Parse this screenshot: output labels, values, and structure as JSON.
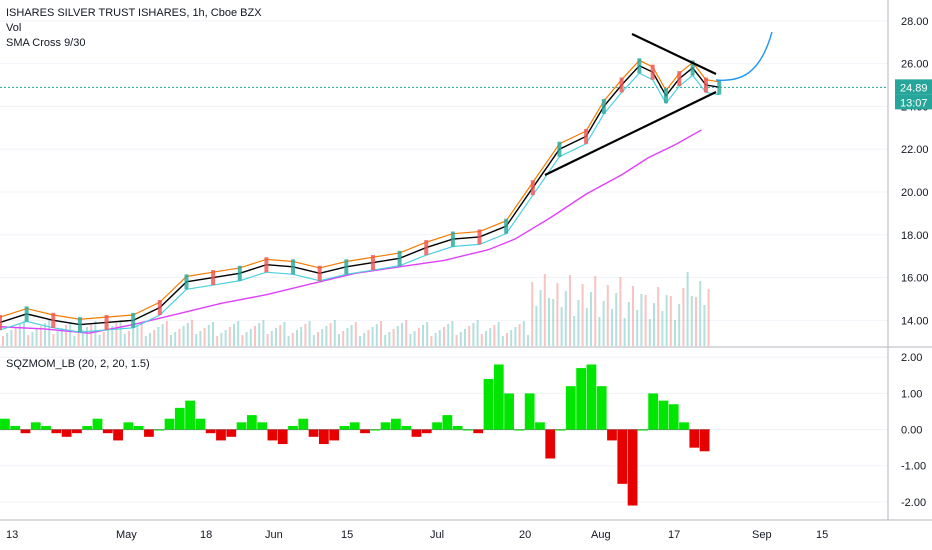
{
  "header": {
    "title": "ISHARES SILVER TRUST ISHARES, 1h, Cboe BZX",
    "vol_label": "Vol",
    "sma_label": "SMA Cross 9/30"
  },
  "sub_header": {
    "label": "SQZMOM_LB (20, 2, 20, 1.5)"
  },
  "badges": {
    "price": "24.89",
    "countdown": "13:07"
  },
  "colors": {
    "price_badge": "#26a69a",
    "countdown_badge": "#26a69a",
    "up": "#26a69a",
    "down": "#ef5350",
    "sma_fast": "#f57c00",
    "sma_slow": "#000000",
    "sma_200": "#e040fb",
    "sma_cyan": "#4dd0e1",
    "projection": "#2196f3",
    "mom_up": "#00e600",
    "mom_down": "#e60000",
    "grid": "#f0f3fa"
  },
  "chart_data": [
    {
      "type": "line",
      "title": "ISHARES SILVER TRUST ISHARES, 1h, Cboe BZX",
      "x_ticks": [
        "13",
        "May",
        "18",
        "Jun",
        "15",
        "Jul",
        "20",
        "Aug",
        "17",
        "Sep",
        "15"
      ],
      "y_ticks": [
        14.0,
        16.0,
        18.0,
        20.0,
        22.0,
        24.0,
        26.0,
        28.0
      ],
      "ylim": [
        12.8,
        28.6
      ],
      "last_price": 24.89,
      "series": [
        {
          "name": "SMA Cross 9/30",
          "x": [
            0.0,
            0.03,
            0.06,
            0.09,
            0.12,
            0.15,
            0.18,
            0.21,
            0.24,
            0.27,
            0.3,
            0.33,
            0.36,
            0.39,
            0.42,
            0.45,
            0.48,
            0.51,
            0.54,
            0.57,
            0.6,
            0.63,
            0.66,
            0.68,
            0.7,
            0.72,
            0.735,
            0.75,
            0.765,
            0.78,
            0.795,
            0.81
          ],
          "values": [
            13.9,
            14.3,
            14.0,
            13.8,
            13.9,
            14.0,
            14.6,
            15.8,
            16.0,
            16.2,
            16.6,
            16.5,
            16.2,
            16.5,
            16.7,
            16.9,
            17.4,
            17.8,
            17.9,
            18.4,
            20.2,
            22.0,
            22.6,
            24.0,
            25.0,
            25.9,
            25.6,
            24.5,
            25.3,
            25.8,
            25.0,
            24.9
          ]
        },
        {
          "name": "SMA 200",
          "x": [
            0.0,
            0.05,
            0.1,
            0.15,
            0.2,
            0.25,
            0.3,
            0.35,
            0.4,
            0.45,
            0.5,
            0.55,
            0.58,
            0.62,
            0.66,
            0.7,
            0.73,
            0.76,
            0.79
          ],
          "values": [
            13.7,
            13.6,
            13.4,
            13.8,
            14.3,
            14.8,
            15.2,
            15.7,
            16.2,
            16.5,
            16.8,
            17.3,
            17.8,
            18.8,
            19.9,
            20.8,
            21.6,
            22.2,
            22.9
          ]
        },
        {
          "name": "Projection",
          "x": [
            0.78,
            0.8,
            0.82,
            0.84
          ],
          "values": [
            25.0,
            25.1,
            25.9,
            27.6
          ]
        }
      ]
    },
    {
      "type": "bar",
      "title": "SQZMOM_LB (20, 2, 20, 1.5)",
      "y_ticks": [
        -2.0,
        -1.0,
        0.0,
        1.0,
        2.0
      ],
      "ylim": [
        -2.5,
        2.2
      ],
      "values": [
        0.3,
        0.1,
        -0.1,
        0.2,
        0.1,
        -0.1,
        -0.2,
        -0.1,
        0.1,
        0.3,
        -0.1,
        -0.3,
        0.2,
        0.1,
        -0.2,
        0.0,
        0.3,
        0.6,
        0.8,
        0.3,
        -0.1,
        -0.3,
        -0.2,
        0.2,
        0.4,
        0.2,
        -0.3,
        -0.4,
        0.1,
        0.3,
        -0.2,
        -0.4,
        -0.3,
        0.1,
        0.2,
        -0.1,
        0.0,
        0.2,
        0.3,
        0.1,
        -0.2,
        -0.1,
        0.2,
        0.4,
        0.1,
        0.0,
        -0.1,
        1.4,
        1.8,
        1.0,
        0.0,
        1.0,
        0.2,
        -0.8,
        0.0,
        1.2,
        1.7,
        1.8,
        1.2,
        -0.3,
        -1.5,
        -2.1,
        0.0,
        1.0,
        0.8,
        0.7,
        0.2,
        -0.5,
        -0.6
      ]
    }
  ],
  "x_axis_labels": [
    "13",
    "May",
    "18",
    "Jun",
    "15",
    "Jul",
    "20",
    "Aug",
    "17",
    "Sep",
    "15"
  ],
  "main_y_labels": [
    "28.00",
    "26.00",
    "24.00",
    "22.00",
    "20.00",
    "18.00",
    "16.00",
    "14.00"
  ],
  "sub_y_labels": [
    "2.00",
    "1.00",
    "0.00",
    "-1.00",
    "-2.00"
  ]
}
